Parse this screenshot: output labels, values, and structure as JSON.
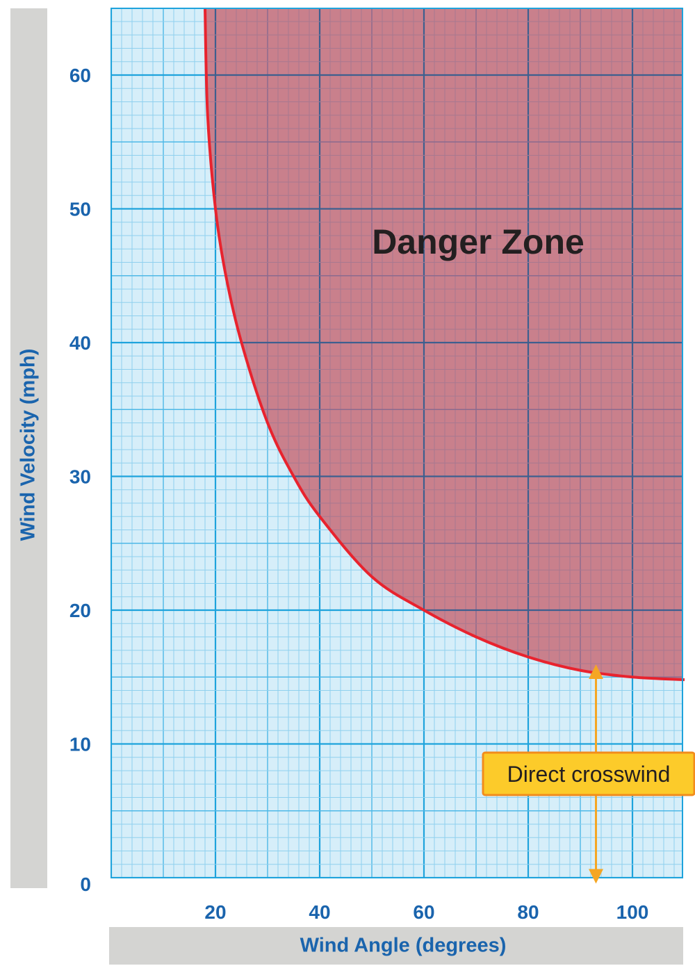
{
  "chart_data": {
    "type": "area",
    "xlabel": "Wind Angle (degrees)",
    "ylabel": "Wind Velocity (mph)",
    "xlim": [
      0,
      110
    ],
    "ylim": [
      0,
      65
    ],
    "x_ticks": [
      20,
      40,
      60,
      80,
      100
    ],
    "y_ticks": [
      0,
      10,
      20,
      30,
      40,
      50,
      60
    ],
    "grid": true,
    "curve": {
      "color": "#e8232e",
      "points": [
        {
          "x": 18,
          "y": 65
        },
        {
          "x": 18.5,
          "y": 57
        },
        {
          "x": 20,
          "y": 50
        },
        {
          "x": 22,
          "y": 45
        },
        {
          "x": 25,
          "y": 40
        },
        {
          "x": 30,
          "y": 34
        },
        {
          "x": 35,
          "y": 30
        },
        {
          "x": 40,
          "y": 27
        },
        {
          "x": 50,
          "y": 22.5
        },
        {
          "x": 60,
          "y": 20
        },
        {
          "x": 70,
          "y": 18
        },
        {
          "x": 80,
          "y": 16.5
        },
        {
          "x": 90,
          "y": 15.5
        },
        {
          "x": 100,
          "y": 15
        },
        {
          "x": 110,
          "y": 14.8
        }
      ]
    },
    "regions": [
      {
        "label": "Danger Zone",
        "color": "#c9677a",
        "area": "above-curve"
      }
    ],
    "annotations": [
      {
        "label": "Direct crosswind",
        "x": 93,
        "y_range": [
          0,
          15.5
        ],
        "color": "#f5a623"
      }
    ]
  }
}
